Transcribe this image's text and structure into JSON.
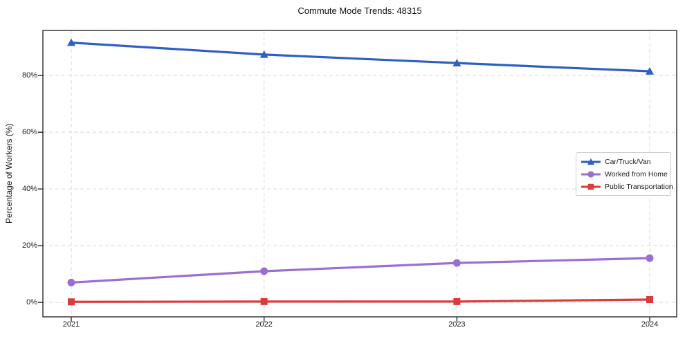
{
  "chart_data": {
    "type": "line",
    "title": "Commute Mode Trends: 48315",
    "xlabel": "",
    "ylabel": "Percentage of Workers (%)",
    "x": [
      "2021",
      "2022",
      "2023",
      "2024"
    ],
    "series": [
      {
        "name": "Car/Truck/Van",
        "color": "#2e5fc2",
        "marker": "triangle",
        "values": [
          91.6,
          87.4,
          84.4,
          81.5
        ]
      },
      {
        "name": "Worked from Home",
        "color": "#9a6fd2",
        "marker": "circle",
        "values": [
          7.0,
          11.0,
          13.9,
          15.6
        ]
      },
      {
        "name": "Public Transportation",
        "color": "#da3b3b",
        "marker": "square",
        "values": [
          0.2,
          0.3,
          0.3,
          1.0
        ]
      }
    ],
    "yticks": [
      0,
      20,
      40,
      60,
      80
    ],
    "ytick_labels": [
      "0%",
      "20%",
      "40%",
      "60%",
      "80%"
    ],
    "ylim": [
      -5.1,
      95.9
    ],
    "grid": true,
    "grid_style": "dashed",
    "legend_position": "center-right",
    "colors": {
      "grid": "#d9d9d9",
      "axis": "#1a1a1a",
      "background": "#ffffff"
    }
  }
}
